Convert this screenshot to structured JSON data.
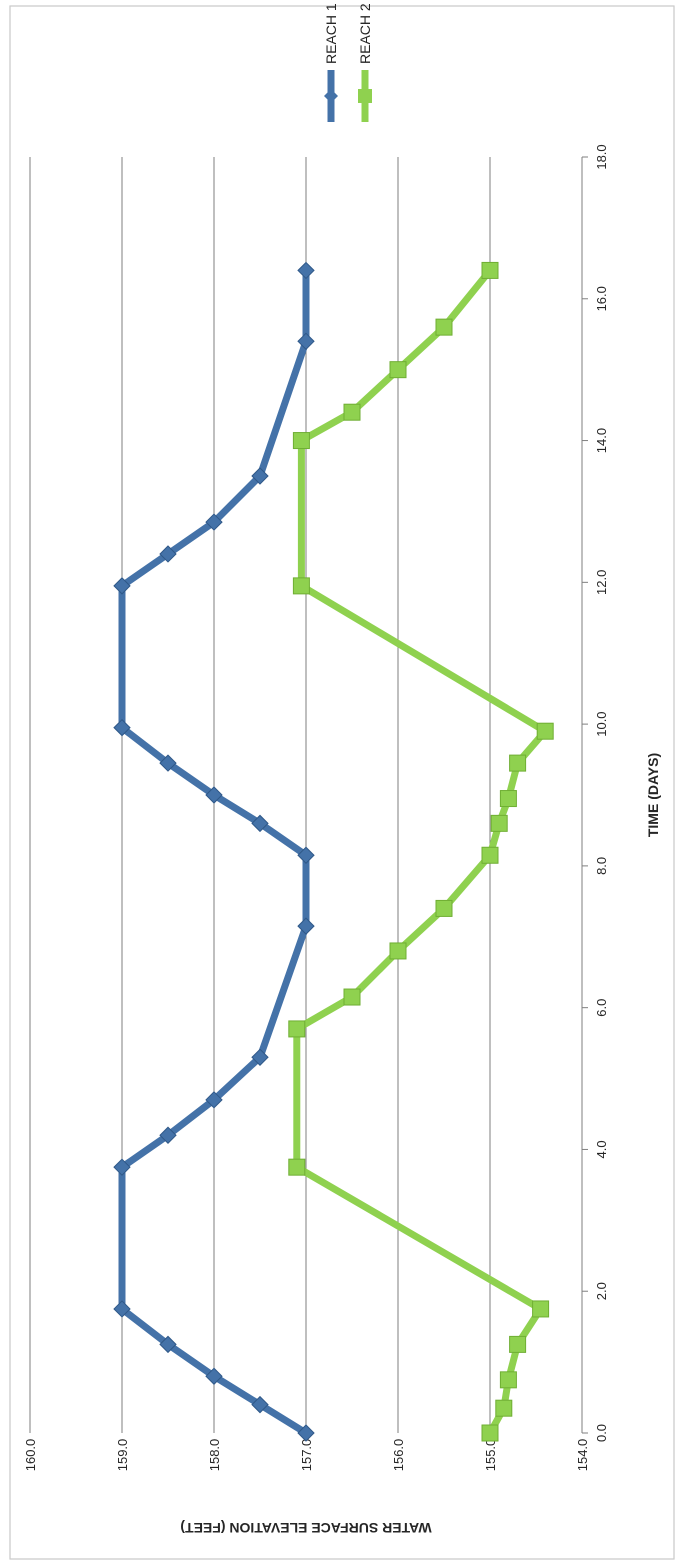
{
  "chart_data": {
    "type": "line",
    "title": "",
    "xlabel": "TIME (DAYS)",
    "ylabel": "WATER SURFACE ELEVATION  (FEET)",
    "xlim": [
      0.0,
      18.0
    ],
    "ylim": [
      154.0,
      160.0
    ],
    "x_ticks": [
      "0.0",
      "2.0",
      "4.0",
      "6.0",
      "8.0",
      "10.0",
      "12.0",
      "14.0",
      "16.0",
      "18.0"
    ],
    "y_ticks": [
      "154.0",
      "155.0",
      "156.0",
      "157.0",
      "158.0",
      "159.0",
      "160.0"
    ],
    "grid": "major horizontal gridlines",
    "legend_position": "right",
    "series": [
      {
        "name": "REACH 1",
        "color": "#4472a8",
        "marker": "diamond",
        "x": [
          0.0,
          0.4,
          0.8,
          1.25,
          1.75,
          3.75,
          4.2,
          4.7,
          5.3,
          7.15,
          8.15,
          8.6,
          9.0,
          9.45,
          9.95,
          11.95,
          12.4,
          12.85,
          13.5,
          15.4,
          16.4
        ],
        "y": [
          157.0,
          157.5,
          158.0,
          158.5,
          159.0,
          159.0,
          158.5,
          158.0,
          157.5,
          157.0,
          157.0,
          157.5,
          158.0,
          158.5,
          159.0,
          159.0,
          158.5,
          158.0,
          157.5,
          157.0,
          157.0
        ]
      },
      {
        "name": "REACH 2",
        "color": "#8fd14f",
        "marker": "square",
        "x": [
          0.0,
          0.35,
          0.75,
          1.25,
          1.75,
          3.75,
          5.7,
          6.15,
          6.8,
          7.4,
          8.15,
          8.6,
          8.95,
          9.45,
          9.9,
          11.95,
          14.0,
          14.4,
          15.0,
          15.6,
          16.4
        ],
        "y": [
          155.0,
          154.85,
          154.8,
          154.7,
          154.45,
          157.1,
          157.1,
          156.5,
          156.0,
          155.5,
          155.0,
          154.9,
          154.8,
          154.7,
          154.4,
          157.05,
          157.05,
          156.5,
          156.0,
          155.5,
          155.0
        ]
      }
    ]
  }
}
